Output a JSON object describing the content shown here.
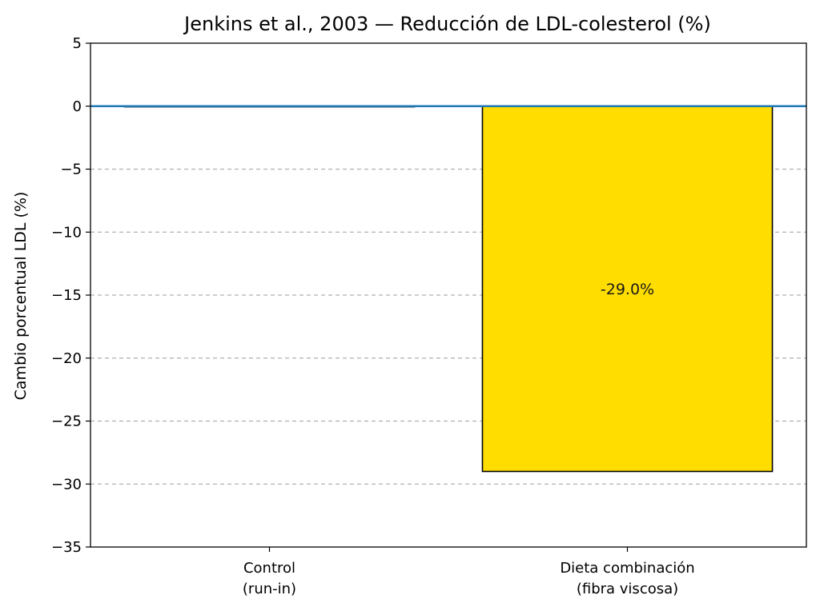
{
  "chart_data": {
    "type": "bar",
    "title": "Jenkins et al., 2003 — Reducción de LDL-colesterol (%)",
    "ylabel": "Cambio porcentual LDL (%)",
    "xlabel": "",
    "categories": [
      [
        "Control",
        "(run-in)"
      ],
      [
        "Dieta combinación",
        "(fibra viscosa)"
      ]
    ],
    "values": [
      0,
      -29.0
    ],
    "data_labels": [
      "",
      "-29.0%"
    ],
    "bar_colors": [
      "#ffffff",
      "#ffdd00"
    ],
    "bar_edge_color": "#000000",
    "ylim": [
      -35,
      5
    ],
    "yticks": [
      5,
      0,
      -5,
      -10,
      -15,
      -20,
      -25,
      -30,
      -35
    ],
    "ytick_labels": [
      "5",
      "0",
      "−5",
      "−10",
      "−15",
      "−20",
      "−25",
      "−30",
      "−35"
    ],
    "reference_line": {
      "y": 0,
      "color": "#1f77b4"
    },
    "grid": {
      "axis": "y",
      "style": "dashed",
      "color": "#b0b0b0"
    }
  }
}
